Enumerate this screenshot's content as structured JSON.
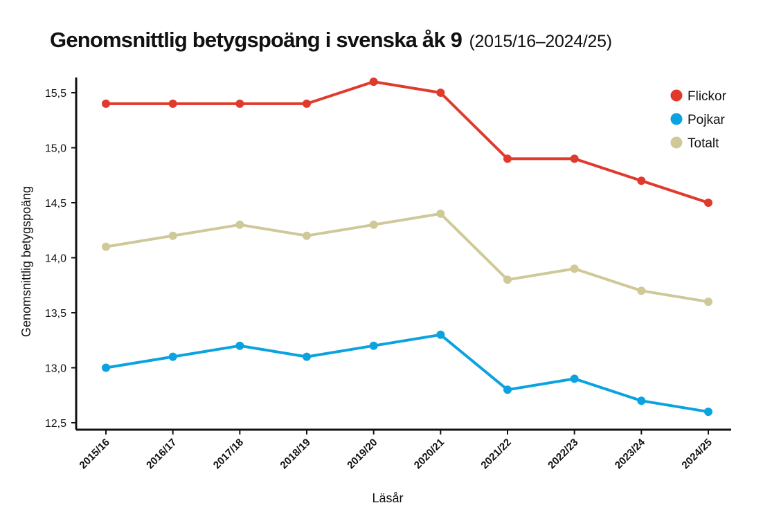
{
  "chart_data": {
    "type": "line",
    "title": "Genomsnittlig betygspoäng i svenska åk 9",
    "subtitle": "(2015/16–2024/25)",
    "xlabel": "Läsår",
    "ylabel": "Genomsnittlig betygspoäng",
    "ylim": [
      12.5,
      15.5
    ],
    "yticks": [
      12.5,
      13.0,
      13.5,
      14.0,
      14.5,
      15.0,
      15.5
    ],
    "ytick_labels": [
      "12,5",
      "13,0",
      "13,5",
      "14,0",
      "14,5",
      "15,0",
      "15,5"
    ],
    "categories": [
      "2015/16",
      "2016/17",
      "2017/18",
      "2018/19",
      "2019/20",
      "2020/21",
      "2021/22",
      "2022/23",
      "2023/24",
      "2024/25"
    ],
    "series": [
      {
        "name": "Flickor",
        "color": "#e03a2c",
        "values": [
          15.4,
          15.4,
          15.4,
          15.4,
          15.6,
          15.5,
          14.9,
          14.9,
          14.7,
          14.5
        ]
      },
      {
        "name": "Pojkar",
        "color": "#0aa3e0",
        "values": [
          13.0,
          13.1,
          13.2,
          13.1,
          13.2,
          13.3,
          12.8,
          12.9,
          12.7,
          12.6
        ]
      },
      {
        "name": "Totalt",
        "color": "#cfc898",
        "values": [
          14.1,
          14.2,
          14.3,
          14.2,
          14.3,
          14.4,
          13.8,
          13.9,
          13.7,
          13.6
        ]
      }
    ],
    "legend_position": "top-right",
    "grid": false
  }
}
